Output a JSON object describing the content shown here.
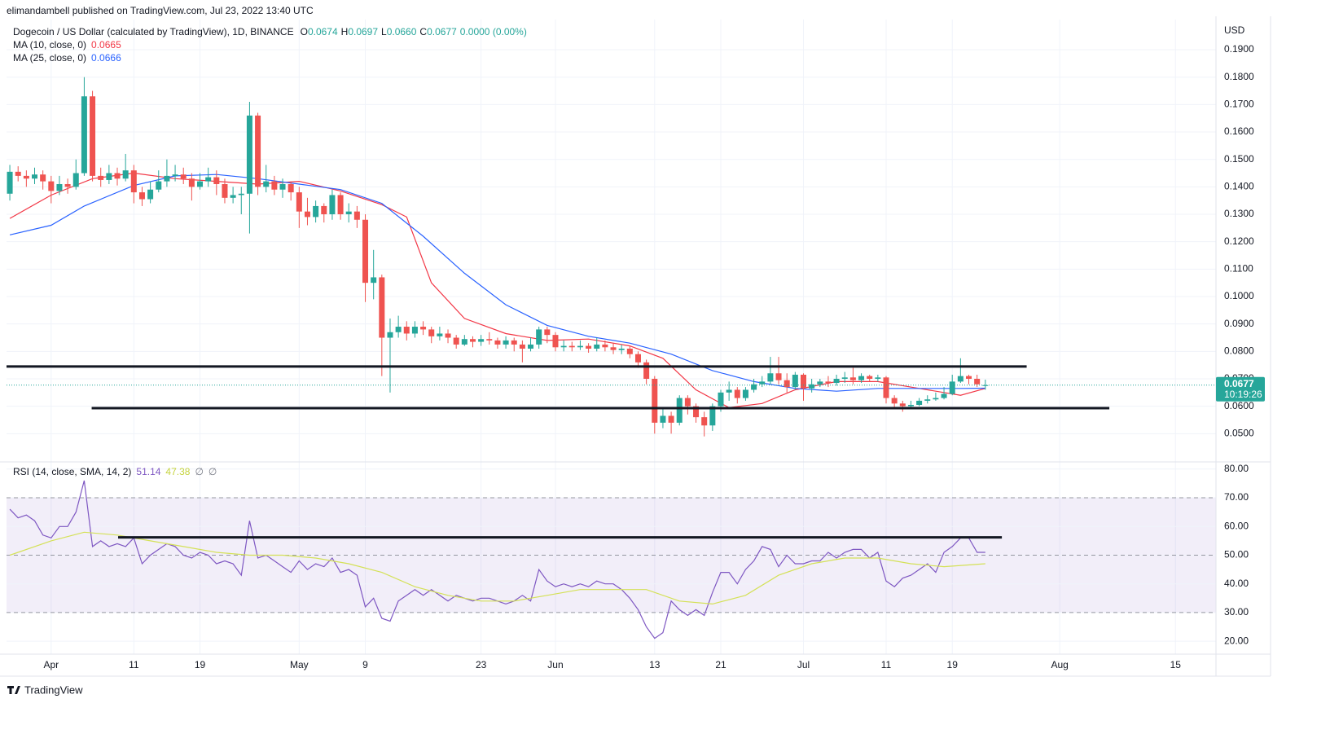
{
  "chart_data": {
    "type": "candlestick",
    "header": "elimandambell published on TradingView.com, Jul 23, 2022 13:40 UTC",
    "title": "Dogecoin / US Dollar (calculated by TradingView), 1D, BINANCE",
    "ohlc_legend": [
      {
        "label": "O",
        "value": "0.0674"
      },
      {
        "label": "H",
        "value": "0.0697"
      },
      {
        "label": "L",
        "value": "0.0660"
      },
      {
        "label": "C",
        "value": "0.0677"
      }
    ],
    "change": "0.0000 (0.00%)",
    "y_unit": "USD",
    "up_color": "#26a69a",
    "down_color": "#ef5350",
    "x": [
      -5,
      -4,
      -3,
      -2,
      -1,
      0,
      1,
      2,
      3,
      4,
      5,
      6,
      7,
      8,
      9,
      10,
      11,
      12,
      13,
      14,
      15,
      16,
      17,
      18,
      19,
      20,
      21,
      22,
      23,
      24,
      25,
      26,
      27,
      28,
      29,
      30,
      31,
      32,
      33,
      34,
      35,
      36,
      37,
      38,
      39,
      40,
      41,
      42,
      43,
      44,
      45,
      46,
      47,
      48,
      49,
      50,
      51,
      52,
      53,
      54,
      55,
      56,
      57,
      58,
      59,
      60,
      61,
      62,
      63,
      64,
      65,
      66,
      67,
      68,
      69,
      70,
      71,
      72,
      73,
      74,
      75,
      76,
      77,
      78,
      79,
      80,
      81,
      82,
      83,
      84,
      85,
      86,
      87,
      88,
      89,
      90,
      91,
      92,
      93,
      94,
      95,
      96,
      97,
      98,
      99,
      100,
      101,
      102,
      103,
      104,
      105,
      106,
      107,
      108,
      109,
      110,
      111,
      112,
      113
    ],
    "open": [
      0.1375,
      0.1455,
      0.144,
      0.143,
      0.1445,
      0.142,
      0.1385,
      0.141,
      0.14,
      0.145,
      0.173,
      0.144,
      0.1425,
      0.145,
      0.143,
      0.146,
      0.138,
      0.1355,
      0.139,
      0.142,
      0.144,
      0.1445,
      0.143,
      0.14,
      0.142,
      0.1435,
      0.141,
      0.136,
      0.137,
      0.1375,
      0.166,
      0.14,
      0.142,
      0.139,
      0.141,
      0.138,
      0.131,
      0.129,
      0.133,
      0.13,
      0.137,
      0.13,
      0.131,
      0.128,
      0.105,
      0.107,
      0.085,
      0.087,
      0.089,
      0.0865,
      0.089,
      0.088,
      0.0855,
      0.0865,
      0.085,
      0.0825,
      0.0845,
      0.0835,
      0.0845,
      0.084,
      0.0825,
      0.084,
      0.0825,
      0.081,
      0.0825,
      0.088,
      0.086,
      0.0815,
      0.082,
      0.0815,
      0.082,
      0.081,
      0.0825,
      0.0815,
      0.0805,
      0.081,
      0.079,
      0.076,
      0.07,
      0.054,
      0.0565,
      0.054,
      0.063,
      0.06,
      0.056,
      0.053,
      0.06,
      0.065,
      0.066,
      0.063,
      0.066,
      0.068,
      0.069,
      0.072,
      0.0695,
      0.067,
      0.0715,
      0.0665,
      0.068,
      0.069,
      0.0685,
      0.07,
      0.0705,
      0.0695,
      0.071,
      0.07,
      0.0705,
      0.063,
      0.061,
      0.06,
      0.0605,
      0.062,
      0.0625,
      0.063,
      0.0645,
      0.069,
      0.071,
      0.07,
      0.0674
    ],
    "high": [
      0.148,
      0.1475,
      0.146,
      0.147,
      0.146,
      0.144,
      0.144,
      0.143,
      0.15,
      0.18,
      0.175,
      0.147,
      0.148,
      0.147,
      0.152,
      0.148,
      0.14,
      0.142,
      0.146,
      0.15,
      0.148,
      0.147,
      0.145,
      0.145,
      0.147,
      0.146,
      0.143,
      0.14,
      0.14,
      0.171,
      0.167,
      0.148,
      0.144,
      0.143,
      0.142,
      0.14,
      0.136,
      0.135,
      0.134,
      0.139,
      0.138,
      0.134,
      0.133,
      0.13,
      0.117,
      0.108,
      0.092,
      0.093,
      0.091,
      0.091,
      0.091,
      0.089,
      0.089,
      0.088,
      0.086,
      0.086,
      0.0855,
      0.086,
      0.087,
      0.085,
      0.0855,
      0.085,
      0.084,
      0.085,
      0.089,
      0.089,
      0.087,
      0.084,
      0.0835,
      0.084,
      0.083,
      0.085,
      0.084,
      0.083,
      0.0825,
      0.082,
      0.08,
      0.077,
      0.071,
      0.059,
      0.058,
      0.064,
      0.064,
      0.061,
      0.058,
      0.061,
      0.066,
      0.069,
      0.067,
      0.067,
      0.07,
      0.071,
      0.078,
      0.078,
      0.072,
      0.0725,
      0.072,
      0.07,
      0.07,
      0.071,
      0.0715,
      0.0725,
      0.074,
      0.072,
      0.0715,
      0.0715,
      0.071,
      0.064,
      0.062,
      0.062,
      0.063,
      0.064,
      0.065,
      0.067,
      0.0715,
      0.0775,
      0.0715,
      0.0715,
      0.0697
    ],
    "low": [
      0.135,
      0.142,
      0.14,
      0.141,
      0.139,
      0.134,
      0.137,
      0.1375,
      0.139,
      0.144,
      0.142,
      0.14,
      0.141,
      0.1405,
      0.142,
      0.134,
      0.133,
      0.134,
      0.138,
      0.14,
      0.142,
      0.141,
      0.135,
      0.139,
      0.14,
      0.137,
      0.134,
      0.134,
      0.13,
      0.123,
      0.137,
      0.138,
      0.137,
      0.136,
      0.135,
      0.125,
      0.126,
      0.127,
      0.127,
      0.128,
      0.128,
      0.127,
      0.125,
      0.098,
      0.099,
      0.071,
      0.065,
      0.085,
      0.084,
      0.085,
      0.086,
      0.083,
      0.084,
      0.083,
      0.081,
      0.082,
      0.0815,
      0.082,
      0.0825,
      0.081,
      0.081,
      0.08,
      0.076,
      0.08,
      0.081,
      0.083,
      0.08,
      0.08,
      0.08,
      0.0805,
      0.0795,
      0.08,
      0.08,
      0.079,
      0.079,
      0.0775,
      0.074,
      0.068,
      0.05,
      0.052,
      0.05,
      0.053,
      0.057,
      0.054,
      0.049,
      0.051,
      0.058,
      0.062,
      0.061,
      0.062,
      0.065,
      0.067,
      0.068,
      0.068,
      0.065,
      0.066,
      0.062,
      0.065,
      0.067,
      0.067,
      0.0675,
      0.0685,
      0.068,
      0.0685,
      0.069,
      0.069,
      0.061,
      0.059,
      0.058,
      0.059,
      0.06,
      0.061,
      0.062,
      0.0625,
      0.064,
      0.0685,
      0.068,
      0.067,
      0.066
    ],
    "close": [
      0.1455,
      0.144,
      0.143,
      0.1445,
      0.142,
      0.1385,
      0.141,
      0.14,
      0.145,
      0.173,
      0.144,
      0.1425,
      0.145,
      0.143,
      0.146,
      0.138,
      0.1355,
      0.139,
      0.142,
      0.144,
      0.1445,
      0.143,
      0.14,
      0.142,
      0.1435,
      0.141,
      0.136,
      0.137,
      0.1375,
      0.166,
      0.14,
      0.142,
      0.139,
      0.141,
      0.138,
      0.131,
      0.129,
      0.133,
      0.13,
      0.137,
      0.13,
      0.131,
      0.128,
      0.105,
      0.107,
      0.085,
      0.087,
      0.089,
      0.0865,
      0.089,
      0.088,
      0.0855,
      0.0865,
      0.085,
      0.0825,
      0.0845,
      0.0835,
      0.0845,
      0.084,
      0.0825,
      0.084,
      0.0825,
      0.081,
      0.0825,
      0.088,
      0.086,
      0.0815,
      0.082,
      0.0815,
      0.082,
      0.081,
      0.0825,
      0.0815,
      0.0805,
      0.081,
      0.079,
      0.076,
      0.07,
      0.054,
      0.0565,
      0.054,
      0.063,
      0.06,
      0.056,
      0.053,
      0.06,
      0.065,
      0.066,
      0.063,
      0.066,
      0.068,
      0.069,
      0.072,
      0.0695,
      0.067,
      0.0715,
      0.0665,
      0.068,
      0.069,
      0.0685,
      0.07,
      0.0705,
      0.0695,
      0.071,
      0.07,
      0.0705,
      0.063,
      0.061,
      0.06,
      0.0605,
      0.062,
      0.0625,
      0.063,
      0.0645,
      0.069,
      0.071,
      0.07,
      0.068,
      0.0677
    ],
    "overlays": [
      {
        "name": "MA (10, close, 0)",
        "value_label": "0.0665",
        "color": "#f23645",
        "x": [
          -5,
          0,
          5,
          10,
          15,
          20,
          25,
          30,
          35,
          40,
          43,
          46,
          50,
          55,
          60,
          65,
          70,
          74,
          78,
          82,
          86,
          90,
          95,
          100,
          105,
          110,
          113
        ],
        "values": [
          0.1285,
          0.137,
          0.143,
          0.145,
          0.143,
          0.142,
          0.141,
          0.142,
          0.1385,
          0.1335,
          0.129,
          0.105,
          0.092,
          0.0865,
          0.084,
          0.0845,
          0.082,
          0.0775,
          0.066,
          0.0595,
          0.061,
          0.066,
          0.069,
          0.069,
          0.0665,
          0.064,
          0.0665
        ]
      },
      {
        "name": "MA (25, close, 0)",
        "value_label": "0.0666",
        "color": "#2962ff",
        "x": [
          -5,
          0,
          4,
          10,
          15,
          20,
          25,
          30,
          35,
          40,
          45,
          50,
          55,
          60,
          65,
          70,
          75,
          80,
          85,
          90,
          95,
          100,
          105,
          110,
          113
        ],
        "values": [
          0.1225,
          0.126,
          0.133,
          0.1405,
          0.144,
          0.1445,
          0.143,
          0.141,
          0.139,
          0.134,
          0.122,
          0.1085,
          0.097,
          0.0895,
          0.0855,
          0.083,
          0.079,
          0.073,
          0.069,
          0.0665,
          0.0655,
          0.0665,
          0.0665,
          0.0665,
          0.0666
        ]
      }
    ],
    "levels": [
      {
        "value": 0.0745,
        "x": [
          -5.4,
          118
        ]
      },
      {
        "value": 0.0593,
        "x": [
          4.9,
          128
        ]
      }
    ],
    "level_color": "#131722",
    "current_price": {
      "value": 0.0677,
      "label": "0.0677"
    },
    "countdown": "10:19:26",
    "xlim": [
      -5.4,
      140.9
    ],
    "xticks": [
      {
        "value": 0,
        "label": "Apr"
      },
      {
        "value": 10,
        "label": "11"
      },
      {
        "value": 18,
        "label": "19"
      },
      {
        "value": 30,
        "label": "May"
      },
      {
        "value": 38,
        "label": "9"
      },
      {
        "value": 52,
        "label": "23"
      },
      {
        "value": 61,
        "label": "Jun"
      },
      {
        "value": 73,
        "label": "13"
      },
      {
        "value": 81,
        "label": "21"
      },
      {
        "value": 91,
        "label": "Jul"
      },
      {
        "value": 101,
        "label": "11"
      },
      {
        "value": 109,
        "label": "19"
      },
      {
        "value": 122,
        "label": "Aug"
      },
      {
        "value": 136,
        "label": "15"
      }
    ],
    "ylim": [
      0.04,
      0.201
    ],
    "yticks": [
      {
        "value": 0.05,
        "label": "0.0500"
      },
      {
        "value": 0.06,
        "label": "0.0600"
      },
      {
        "value": 0.07,
        "label": "0.0700"
      },
      {
        "value": 0.08,
        "label": "0.0800"
      },
      {
        "value": 0.09,
        "label": "0.0900"
      },
      {
        "value": 0.1,
        "label": "0.1000"
      },
      {
        "value": 0.11,
        "label": "0.1100"
      },
      {
        "value": 0.12,
        "label": "0.1200"
      },
      {
        "value": 0.13,
        "label": "0.1300"
      },
      {
        "value": 0.14,
        "label": "0.1400"
      },
      {
        "value": 0.15,
        "label": "0.1500"
      },
      {
        "value": 0.16,
        "label": "0.1600"
      },
      {
        "value": 0.17,
        "label": "0.1700"
      },
      {
        "value": 0.18,
        "label": "0.1800"
      },
      {
        "value": 0.19,
        "label": "0.1900"
      }
    ],
    "grid": true,
    "rsi": {
      "title": "RSI (14, close, SMA, 14, 2)",
      "legend_values": [
        {
          "label": "51.14",
          "color": "#7e57c2"
        },
        {
          "label": "47.38",
          "color": "#c6d43f"
        },
        {
          "label": "∅",
          "color": "#787b86"
        },
        {
          "label": "∅",
          "color": "#787b86"
        }
      ],
      "color": "#7e57c2",
      "values": [
        66,
        63,
        64,
        62,
        57,
        56,
        60,
        60,
        65,
        76,
        53,
        55,
        53,
        54,
        53,
        56,
        47,
        50,
        52,
        54,
        53,
        50,
        49,
        51,
        50,
        47,
        48,
        47,
        43,
        62,
        49,
        50,
        48,
        46,
        44,
        48,
        45,
        47,
        46,
        49,
        44,
        45,
        43,
        32,
        35,
        28,
        27,
        34,
        36,
        38,
        36,
        38,
        36,
        34,
        36,
        35,
        34,
        35,
        35,
        34,
        33,
        34,
        36,
        34,
        45,
        41,
        39,
        40,
        39,
        40,
        39,
        41,
        40,
        40,
        38,
        35,
        31,
        25,
        21,
        23,
        34,
        31,
        29,
        31,
        29,
        37,
        44,
        44,
        40,
        45,
        48,
        53,
        52,
        46,
        50,
        47,
        47,
        48,
        48,
        51,
        49,
        51,
        52,
        52,
        49,
        51,
        41,
        39,
        42,
        43,
        45,
        47,
        44,
        51,
        53,
        56,
        56,
        51,
        51
      ],
      "ma_color": "#d4e157",
      "ma_x": [
        -5,
        0,
        4,
        8,
        12,
        16,
        20,
        24,
        28,
        32,
        36,
        40,
        44,
        48,
        52,
        56,
        60,
        64,
        68,
        72,
        76,
        80,
        84,
        88,
        92,
        96,
        100,
        104,
        108,
        113
      ],
      "ma_values": [
        50,
        55,
        58,
        57,
        55,
        53,
        51,
        50,
        50,
        49,
        47,
        44,
        39,
        36,
        34,
        34,
        36,
        38,
        38,
        38,
        34,
        33,
        36,
        43,
        47,
        49,
        49,
        47,
        46,
        47
      ],
      "band": [
        30,
        70
      ],
      "midline": 50,
      "band_color": "rgba(126,87,194,0.10)",
      "level": {
        "value": 56.2,
        "x": [
          8.1,
          115
        ]
      },
      "ylim": [
        15.5,
        82.5
      ],
      "yticks": [
        {
          "value": 20,
          "label": "20.00"
        },
        {
          "value": 30,
          "label": "30.00"
        },
        {
          "value": 40,
          "label": "40.00"
        },
        {
          "value": 50,
          "label": "50.00"
        },
        {
          "value": 60,
          "label": "60.00"
        },
        {
          "value": 70,
          "label": "70.00"
        },
        {
          "value": 80,
          "label": "80.00"
        }
      ]
    },
    "footer": "TradingView"
  }
}
